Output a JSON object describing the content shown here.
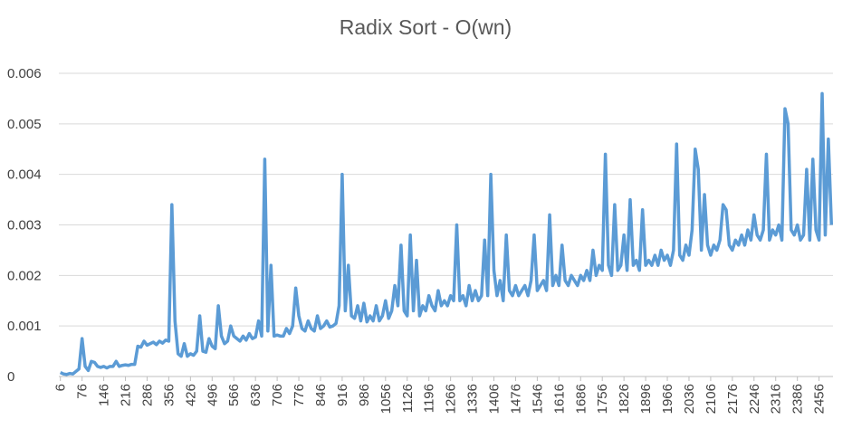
{
  "chart_data": {
    "type": "line",
    "title": "Radix Sort - O(wn)",
    "x": [
      6,
      16,
      26,
      36,
      46,
      56,
      66,
      76,
      86,
      96,
      106,
      116,
      126,
      136,
      146,
      156,
      166,
      176,
      186,
      196,
      206,
      216,
      226,
      236,
      246,
      256,
      266,
      276,
      286,
      296,
      306,
      316,
      326,
      336,
      346,
      356,
      366,
      376,
      386,
      396,
      406,
      416,
      426,
      436,
      446,
      456,
      466,
      476,
      486,
      496,
      506,
      516,
      526,
      536,
      546,
      556,
      566,
      576,
      586,
      596,
      606,
      616,
      626,
      636,
      646,
      656,
      666,
      676,
      686,
      696,
      706,
      716,
      726,
      736,
      746,
      756,
      766,
      776,
      786,
      796,
      806,
      816,
      826,
      836,
      846,
      856,
      866,
      876,
      886,
      896,
      906,
      916,
      926,
      936,
      946,
      956,
      966,
      976,
      986,
      996,
      1006,
      1016,
      1026,
      1036,
      1046,
      1056,
      1066,
      1076,
      1086,
      1096,
      1106,
      1116,
      1126,
      1136,
      1146,
      1156,
      1166,
      1176,
      1186,
      1196,
      1206,
      1216,
      1226,
      1236,
      1246,
      1256,
      1266,
      1276,
      1286,
      1296,
      1306,
      1316,
      1326,
      1336,
      1346,
      1356,
      1366,
      1376,
      1386,
      1396,
      1406,
      1416,
      1426,
      1436,
      1446,
      1456,
      1466,
      1476,
      1486,
      1496,
      1506,
      1516,
      1526,
      1536,
      1546,
      1556,
      1566,
      1576,
      1586,
      1596,
      1606,
      1616,
      1626,
      1636,
      1646,
      1656,
      1666,
      1676,
      1686,
      1696,
      1706,
      1716,
      1726,
      1736,
      1746,
      1756,
      1766,
      1776,
      1786,
      1796,
      1806,
      1816,
      1826,
      1836,
      1846,
      1856,
      1866,
      1876,
      1886,
      1896,
      1906,
      1916,
      1926,
      1936,
      1946,
      1956,
      1966,
      1976,
      1986,
      1996,
      2006,
      2016,
      2026,
      2036,
      2046,
      2056,
      2066,
      2076,
      2086,
      2096,
      2106,
      2116,
      2126,
      2136,
      2146,
      2156,
      2166,
      2176,
      2186,
      2196,
      2206,
      2216,
      2226,
      2236,
      2246,
      2256,
      2266,
      2276,
      2286,
      2296,
      2306,
      2316,
      2326,
      2336,
      2346,
      2356,
      2366,
      2376,
      2386,
      2396,
      2406,
      2416,
      2426,
      2436,
      2446,
      2456,
      2466,
      2476,
      2486,
      2496
    ],
    "series": [
      {
        "color": "#5b9bd5",
        "values": [
          8e-05,
          5e-05,
          4e-05,
          6e-05,
          5e-05,
          0.0001,
          0.00015,
          0.00075,
          0.0002,
          0.00012,
          0.0003,
          0.00028,
          0.0002,
          0.00018,
          0.0002,
          0.00017,
          0.0002,
          0.0002,
          0.0003,
          0.0002,
          0.00022,
          0.00023,
          0.00022,
          0.00024,
          0.00024,
          0.0006,
          0.00058,
          0.0007,
          0.00062,
          0.00065,
          0.00068,
          0.00063,
          0.0007,
          0.00066,
          0.00072,
          0.0007,
          0.0034,
          0.0011,
          0.00045,
          0.0004,
          0.00065,
          0.0004,
          0.00045,
          0.00042,
          0.0005,
          0.0012,
          0.0005,
          0.00048,
          0.00075,
          0.0006,
          0.00055,
          0.0014,
          0.0008,
          0.00065,
          0.0007,
          0.001,
          0.0008,
          0.00075,
          0.0007,
          0.0008,
          0.00072,
          0.00085,
          0.00075,
          0.00078,
          0.0011,
          0.0008,
          0.0043,
          0.0009,
          0.0022,
          0.0008,
          0.00082,
          0.0008,
          0.0008,
          0.00095,
          0.00085,
          0.001,
          0.00175,
          0.0012,
          0.00095,
          0.0009,
          0.0011,
          0.00095,
          0.0009,
          0.0012,
          0.00095,
          0.001,
          0.0011,
          0.00098,
          0.001,
          0.00105,
          0.0014,
          0.004,
          0.0013,
          0.0022,
          0.0012,
          0.00115,
          0.0014,
          0.0011,
          0.00145,
          0.00108,
          0.0012,
          0.0011,
          0.0014,
          0.0011,
          0.0012,
          0.0015,
          0.00115,
          0.0013,
          0.0018,
          0.0014,
          0.0026,
          0.0013,
          0.0012,
          0.0028,
          0.0013,
          0.0023,
          0.0012,
          0.0014,
          0.0013,
          0.0016,
          0.0014,
          0.0013,
          0.0017,
          0.0014,
          0.0015,
          0.0014,
          0.0016,
          0.0015,
          0.003,
          0.0015,
          0.0016,
          0.0014,
          0.0018,
          0.0015,
          0.0017,
          0.0015,
          0.0016,
          0.0027,
          0.0016,
          0.004,
          0.0021,
          0.0016,
          0.0019,
          0.0015,
          0.0028,
          0.0017,
          0.0016,
          0.0018,
          0.0016,
          0.0017,
          0.0018,
          0.0016,
          0.0019,
          0.0028,
          0.0017,
          0.0018,
          0.0019,
          0.0017,
          0.0032,
          0.0018,
          0.002,
          0.0018,
          0.0026,
          0.0019,
          0.0018,
          0.002,
          0.0019,
          0.0018,
          0.002,
          0.0019,
          0.0021,
          0.0019,
          0.0025,
          0.002,
          0.0022,
          0.0021,
          0.0044,
          0.0022,
          0.002,
          0.0034,
          0.0021,
          0.0022,
          0.0028,
          0.0021,
          0.0035,
          0.0022,
          0.0023,
          0.0021,
          0.0033,
          0.0022,
          0.0023,
          0.0022,
          0.0024,
          0.0022,
          0.0025,
          0.0023,
          0.0024,
          0.0022,
          0.0025,
          0.0046,
          0.0024,
          0.0023,
          0.0026,
          0.0024,
          0.0029,
          0.0045,
          0.0041,
          0.0025,
          0.0036,
          0.0026,
          0.0024,
          0.0026,
          0.0025,
          0.0027,
          0.0034,
          0.0033,
          0.0026,
          0.0025,
          0.0027,
          0.0026,
          0.0028,
          0.0026,
          0.0029,
          0.0027,
          0.0032,
          0.0028,
          0.0027,
          0.0029,
          0.0044,
          0.0027,
          0.0029,
          0.0028,
          0.003,
          0.0027,
          0.0053,
          0.005,
          0.0029,
          0.0028,
          0.003,
          0.0027,
          0.0028,
          0.0041,
          0.0027,
          0.0043,
          0.0029,
          0.0027,
          0.0056,
          0.0028,
          0.0047,
          0.003
        ]
      }
    ],
    "xlim": [
      1,
      2501
    ],
    "xticks": [
      6,
      76,
      146,
      216,
      286,
      356,
      426,
      496,
      566,
      636,
      706,
      776,
      846,
      916,
      986,
      1056,
      1126,
      1196,
      1266,
      1336,
      1406,
      1476,
      1546,
      1616,
      1686,
      1756,
      1826,
      1896,
      1966,
      2036,
      2106,
      2176,
      2246,
      2316,
      2386,
      2456
    ],
    "ylim": [
      0,
      0.006
    ],
    "yticks": [
      0,
      0.001,
      0.002,
      0.003,
      0.004,
      0.005,
      0.006
    ],
    "grid": true
  }
}
